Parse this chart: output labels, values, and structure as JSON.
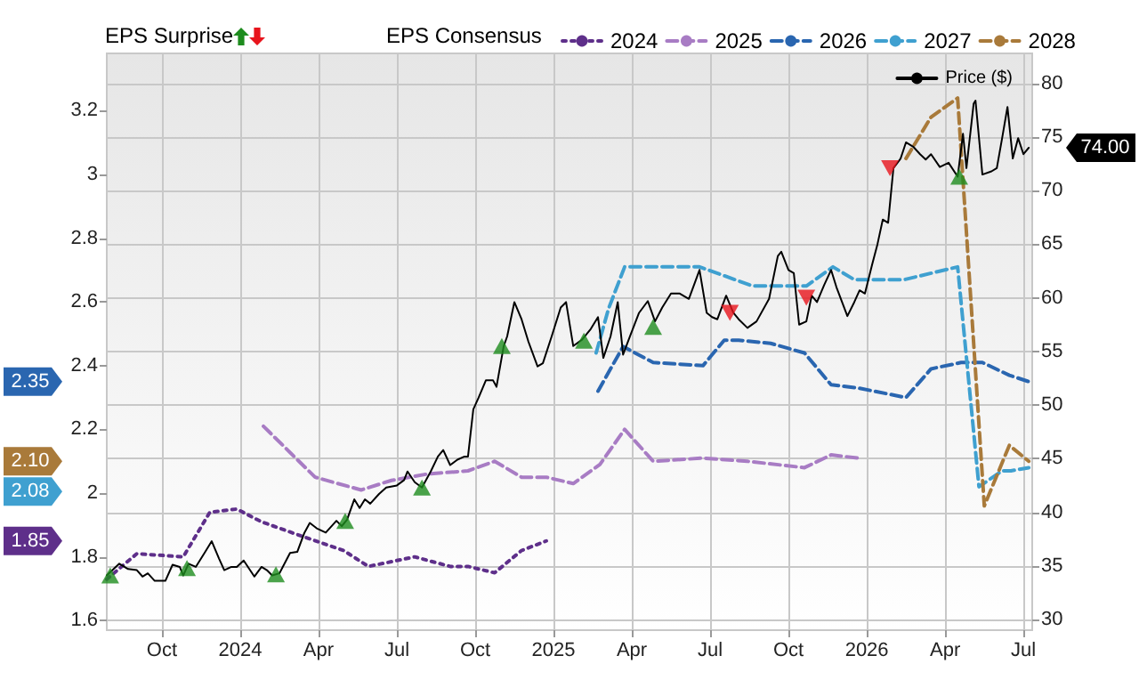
{
  "chart_data": {
    "type": "line",
    "legend_title": "EPS Consensus",
    "legend": "top",
    "grid": true,
    "annotations": [
      "EPS Surprise",
      "2.35",
      "2.08",
      "2.10",
      "1.85",
      "74.00"
    ],
    "xlim": [
      2023.574,
      2026.528
    ],
    "xticks": [
      {
        "value": 2023.75,
        "label": "Oct"
      },
      2024,
      {
        "value": 2024.25,
        "label": "Apr"
      },
      {
        "value": 2024.5,
        "label": "Jul"
      },
      {
        "value": 2024.75,
        "label": "Oct"
      },
      2025,
      {
        "value": 2025.25,
        "label": "Apr"
      },
      {
        "value": 2025.5,
        "label": "Jul"
      },
      {
        "value": 2025.75,
        "label": "Oct"
      },
      2026,
      {
        "value": 2026.25,
        "label": "Apr"
      },
      {
        "value": 2026.5,
        "label": "Jul"
      }
    ],
    "ylim": [
      1.57,
      3.38
    ],
    "yticks": [
      1.6,
      1.8,
      2,
      2.2,
      2.4,
      2.6,
      2.8,
      3,
      3.2
    ],
    "y2lim": [
      29,
      82.8
    ],
    "y2ticks": [
      30,
      35,
      40,
      45,
      50,
      55,
      60,
      65,
      70,
      75,
      80
    ],
    "series": [
      {
        "name": "2024",
        "color": "#5e2f8a",
        "line_style": "dotted",
        "marker": "none",
        "x": [
          2023.574,
          2023.67,
          2023.818,
          2023.903,
          2023.989,
          2024.068,
          2024.182,
          2024.33,
          2024.409,
          2024.557,
          2024.67,
          2024.727,
          2024.812,
          2024.898,
          2024.977
        ],
        "values": [
          1.73,
          1.81,
          1.8,
          1.94,
          1.95,
          1.91,
          1.87,
          1.82,
          1.77,
          1.8,
          1.77,
          1.77,
          1.75,
          1.82,
          1.85
        ]
      },
      {
        "name": "2025",
        "color": "#a87cc4",
        "line_style": "dashed",
        "marker": "none",
        "x": [
          2024.074,
          2024.239,
          2024.386,
          2024.483,
          2024.597,
          2024.727,
          2024.812,
          2024.898,
          2024.977,
          2025.063,
          2025.148,
          2025.227,
          2025.318,
          2025.477,
          2025.619,
          2025.801,
          2025.886,
          2025.972
        ],
        "values": [
          2.21,
          2.05,
          2.01,
          2.04,
          2.06,
          2.07,
          2.1,
          2.05,
          2.05,
          2.03,
          2.09,
          2.2,
          2.1,
          2.11,
          2.1,
          2.08,
          2.12,
          2.11
        ]
      },
      {
        "name": "2026",
        "color": "#2a66b0",
        "line_style": "dashed",
        "marker": "none",
        "x": [
          2025.142,
          2025.222,
          2025.318,
          2025.477,
          2025.545,
          2025.591,
          2025.693,
          2025.801,
          2025.886,
          2025.972,
          2026.125,
          2026.205,
          2026.301,
          2026.369,
          2026.455,
          2026.517
        ],
        "values": [
          2.32,
          2.46,
          2.41,
          2.4,
          2.48,
          2.48,
          2.47,
          2.44,
          2.34,
          2.33,
          2.3,
          2.39,
          2.41,
          2.41,
          2.37,
          2.35
        ]
      },
      {
        "name": "2027",
        "color": "#3fa0d0",
        "line_style": "dashed",
        "marker": "none",
        "x": [
          2025.136,
          2025.176,
          2025.227,
          2025.466,
          2025.636,
          2025.807,
          2025.892,
          2025.96,
          2026.119,
          2026.29,
          2026.358,
          2026.432,
          2026.46,
          2026.517
        ],
        "values": [
          2.44,
          2.58,
          2.71,
          2.71,
          2.65,
          2.65,
          2.71,
          2.67,
          2.67,
          2.71,
          2.02,
          2.07,
          2.07,
          2.08
        ]
      },
      {
        "name": "2028",
        "color": "#a97a3a",
        "line_style": "dashed",
        "marker": "none",
        "x": [
          2026.125,
          2026.205,
          2026.29,
          2026.375,
          2026.455,
          2026.517
        ],
        "values": [
          3.05,
          3.18,
          3.24,
          1.96,
          2.15,
          2.1
        ]
      },
      {
        "name": "Price ($)",
        "color": "#000000",
        "axis": "y2",
        "line_style": "solid",
        "marker": "none",
        "x": [
          2023.574,
          2023.614,
          2023.642,
          2023.67,
          2023.688,
          2023.705,
          2023.727,
          2023.761,
          2023.784,
          2023.807,
          2023.818,
          2023.835,
          2023.858,
          2023.886,
          2023.909,
          2023.932,
          2023.949,
          2023.972,
          2023.989,
          2024.011,
          2024.045,
          2024.068,
          2024.085,
          2024.102,
          2024.125,
          2024.159,
          2024.182,
          2024.205,
          2024.222,
          2024.244,
          2024.273,
          2024.307,
          2024.324,
          2024.341,
          2024.364,
          2024.381,
          2024.398,
          2024.415,
          2024.443,
          2024.466,
          2024.5,
          2024.523,
          2024.534,
          2024.557,
          2024.58,
          2024.608,
          2024.631,
          2024.648,
          2024.67,
          2024.693,
          2024.716,
          2024.727,
          2024.744,
          2024.761,
          2024.784,
          2024.807,
          2024.818,
          2024.841,
          2024.852,
          2024.875,
          2024.898,
          2024.92,
          2024.949,
          2024.966,
          2024.994,
          2025.023,
          2025.04,
          2025.063,
          2025.091,
          2025.119,
          2025.142,
          2025.159,
          2025.182,
          2025.205,
          2025.222,
          2025.244,
          2025.273,
          2025.301,
          2025.324,
          2025.347,
          2025.375,
          2025.403,
          2025.432,
          2025.466,
          2025.489,
          2025.506,
          2025.523,
          2025.551,
          2025.574,
          2025.591,
          2025.619,
          2025.648,
          2025.688,
          2025.716,
          2025.727,
          2025.75,
          2025.767,
          2025.784,
          2025.807,
          2025.824,
          2025.841,
          2025.864,
          2025.886,
          2025.903,
          2025.938,
          2025.96,
          2025.977,
          2025.994,
          2026.017,
          2026.034,
          2026.051,
          2026.068,
          2026.085,
          2026.108,
          2026.125,
          2026.148,
          2026.17,
          2026.188,
          2026.205,
          2026.233,
          2026.261,
          2026.29,
          2026.307,
          2026.318,
          2026.341,
          2026.347,
          2026.369,
          2026.398,
          2026.415,
          2026.432,
          2026.449,
          2026.466,
          2026.483,
          2026.5,
          2026.517
        ],
        "values": [
          34.1,
          35.2,
          34.7,
          34.6,
          34.0,
          34.3,
          33.6,
          33.6,
          35.1,
          34.9,
          34.1,
          35.2,
          34.9,
          36.2,
          37.3,
          35.7,
          34.6,
          34.9,
          34.9,
          35.5,
          34.0,
          34.9,
          34.6,
          34.1,
          34.3,
          36.2,
          36.3,
          38.1,
          39.0,
          38.5,
          38.1,
          39.2,
          38.7,
          39.3,
          41.2,
          40.4,
          41.2,
          40.8,
          41.7,
          42.3,
          42.5,
          43.0,
          43.8,
          42.8,
          42.3,
          43.8,
          45.2,
          45.8,
          44.4,
          44.9,
          45.2,
          45.2,
          49.6,
          50.7,
          52.3,
          52.3,
          51.7,
          55.5,
          56.4,
          59.6,
          58.0,
          55.9,
          53.6,
          53.9,
          56.4,
          59.1,
          59.6,
          55.5,
          56.1,
          57.1,
          58.2,
          54.4,
          56.4,
          59.6,
          54.7,
          56.4,
          58.6,
          59.7,
          57.8,
          59.1,
          60.4,
          60.4,
          59.9,
          62.6,
          58.6,
          58.2,
          58.0,
          60.2,
          58.6,
          58.0,
          57.2,
          57.8,
          59.9,
          63.9,
          64.3,
          62.6,
          62.3,
          57.5,
          57.8,
          60.2,
          59.6,
          61.2,
          62.6,
          61.0,
          58.3,
          59.6,
          60.7,
          60.4,
          63.1,
          65.0,
          67.3,
          67.0,
          72.1,
          73.0,
          74.5,
          74.1,
          73.4,
          72.9,
          73.4,
          72.2,
          72.6,
          71.3,
          75.3,
          72.1,
          78.1,
          78.4,
          71.5,
          71.8,
          72.1,
          74.9,
          77.8,
          73.0,
          74.9,
          73.4,
          74.0
        ]
      },
      {
        "type": "scatter",
        "color": "#1e8c1e",
        "axis": "y2",
        "marker": "triangle",
        "x": [
          2023.585,
          2023.83,
          2024.114,
          2024.335,
          2024.58,
          2024.835,
          2025.097,
          2025.318,
          2026.295
        ],
        "values": [
          34.1,
          34.8,
          34.2,
          39.2,
          42.3,
          55.5,
          56.0,
          57.3,
          71.3
        ]
      },
      {
        "type": "scatter",
        "color": "#e8141c",
        "axis": "y2",
        "marker": "triangle-down",
        "x": [
          2025.563,
          2025.807,
          2026.074
        ],
        "values": [
          58.6,
          60.0,
          72.1
        ]
      }
    ]
  }
}
